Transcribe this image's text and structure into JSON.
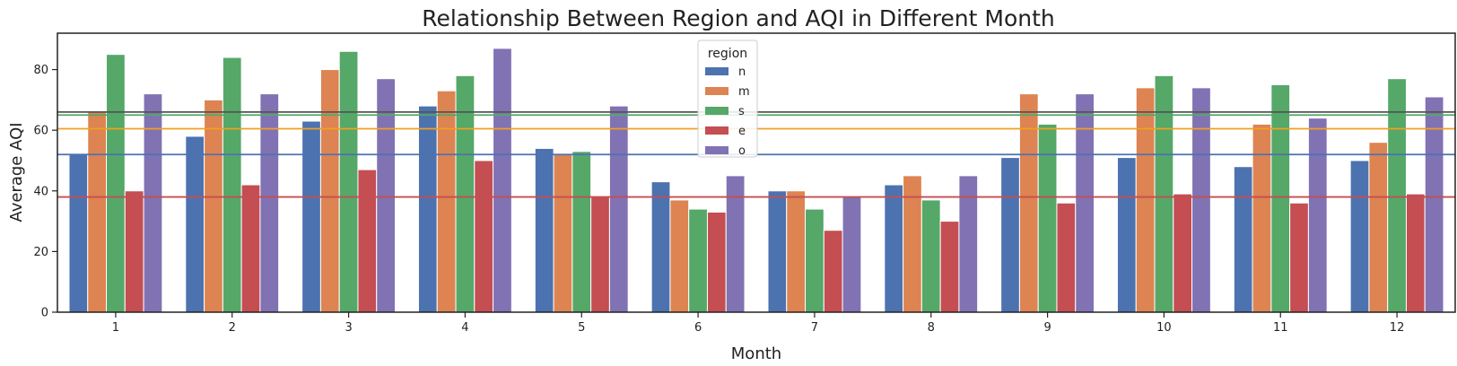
{
  "chart_data": {
    "type": "bar",
    "title": "Relationship Between Region and AQI in Different Month",
    "xlabel": "Month",
    "ylabel": "Average AQI",
    "categories": [
      "1",
      "2",
      "3",
      "4",
      "5",
      "6",
      "7",
      "8",
      "9",
      "10",
      "11",
      "12"
    ],
    "ylim": [
      0,
      92
    ],
    "yticks": [
      0,
      20,
      40,
      60,
      80
    ],
    "grid": false,
    "legend": {
      "title": "region",
      "placement": "top-center"
    },
    "series": [
      {
        "name": "n",
        "color": "#4c72b0",
        "values": [
          52,
          58,
          63,
          68,
          54,
          43,
          40,
          42,
          51,
          51,
          48,
          50
        ]
      },
      {
        "name": "m",
        "color": "#dd8452",
        "values": [
          66,
          70,
          80,
          73,
          52,
          37,
          40,
          45,
          72,
          74,
          62,
          56
        ]
      },
      {
        "name": "s",
        "color": "#55a868",
        "values": [
          85,
          84,
          86,
          78,
          53,
          34,
          34,
          37,
          62,
          78,
          75,
          77
        ]
      },
      {
        "name": "e",
        "color": "#c44e52",
        "values": [
          40,
          42,
          47,
          50,
          38,
          33,
          27,
          30,
          36,
          39,
          36,
          39
        ]
      },
      {
        "name": "o",
        "color": "#8172b3",
        "values": [
          72,
          72,
          77,
          87,
          68,
          45,
          38,
          45,
          72,
          74,
          64,
          71
        ]
      }
    ],
    "reference_lines": [
      {
        "value": 66.0,
        "color": "#555555"
      },
      {
        "value": 65.0,
        "color": "#55a868"
      },
      {
        "value": 60.5,
        "color": "#f0a020"
      },
      {
        "value": 52.0,
        "color": "#4c72b0"
      },
      {
        "value": 38.0,
        "color": "#c44e52"
      }
    ]
  }
}
